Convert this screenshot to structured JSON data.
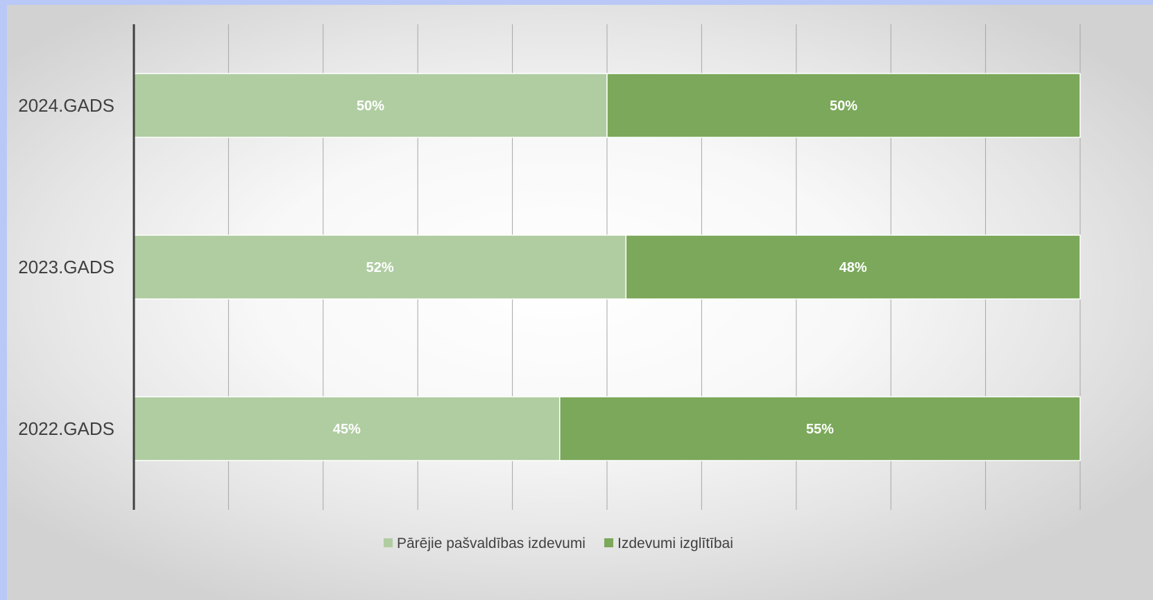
{
  "chart_data": {
    "type": "bar",
    "orientation": "horizontal",
    "stacked": true,
    "categories": [
      "2024.GADS",
      "2023.GADS",
      "2022.GADS"
    ],
    "series": [
      {
        "name": "Pārējie pašvaldības izdevumi",
        "values": [
          50,
          52,
          45
        ],
        "labels": [
          "50%",
          "52%",
          "45%"
        ],
        "color": "#b0cda2"
      },
      {
        "name": "Izdevumi izglītībai",
        "values": [
          50,
          48,
          55
        ],
        "labels": [
          "50%",
          "48%",
          "55%"
        ],
        "color": "#7ba85a"
      }
    ],
    "xlim": [
      0,
      100
    ],
    "grid": true,
    "legend_position": "bottom",
    "title": "",
    "xlabel": "",
    "ylabel": ""
  }
}
